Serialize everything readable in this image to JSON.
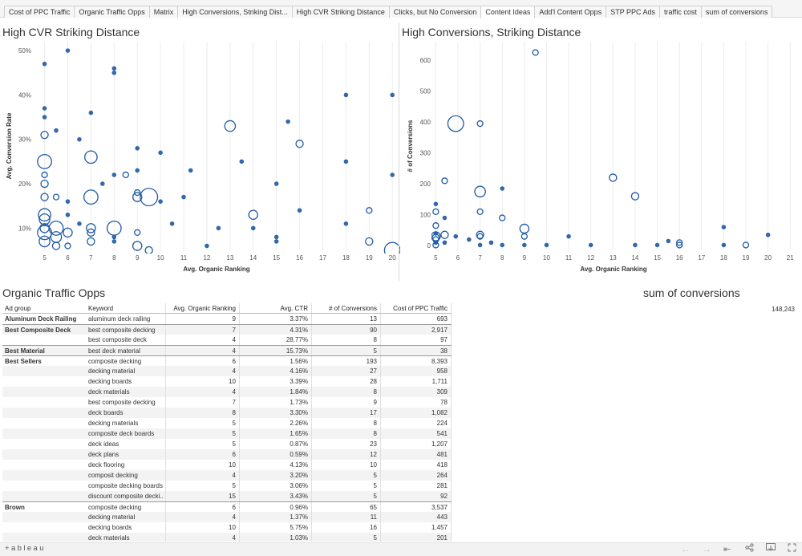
{
  "tabs": [
    {
      "label": "Cost of PPC Traffic"
    },
    {
      "label": "Organic Traffic Opps"
    },
    {
      "label": "Matrix"
    },
    {
      "label": "High Conversions, Striking Dist..."
    },
    {
      "label": "High CVR Striking Distance"
    },
    {
      "label": "Clicks, but No Conversion"
    },
    {
      "label": "Content Ideas",
      "active": true
    },
    {
      "label": "Add'l Content Opps"
    },
    {
      "label": "STP PPC Ads"
    },
    {
      "label": "traffic cost"
    },
    {
      "label": "sum of conversions"
    }
  ],
  "titles": {
    "cvr": "High CVR Striking Distance",
    "conv": "High Conversions, Striking Distance",
    "organic": "Organic Traffic Opps",
    "sum": "sum of conversions"
  },
  "sum_value": "148,243",
  "colors": {
    "mark": "#1f5aa6",
    "grid": "#ececec"
  },
  "chart_data": [
    {
      "type": "scatter",
      "title": "High CVR Striking Distance",
      "xlabel": "Avg. Organic Ranking",
      "ylabel": "Avg. Conversion Rate",
      "xticks": [
        "5",
        "6",
        "7",
        "8",
        "9",
        "10",
        "11",
        "12",
        "13",
        "14",
        "15",
        "16",
        "17",
        "18",
        "19",
        "20"
      ],
      "yticks": [
        "10%",
        "20%",
        "30%",
        "40%",
        "50%"
      ],
      "xlim": [
        4.6,
        20.2
      ],
      "ylim": [
        0.05,
        0.52
      ],
      "points": [
        [
          5,
          0.47,
          1
        ],
        [
          5,
          0.37,
          1
        ],
        [
          5,
          0.35,
          1
        ],
        [
          5,
          0.31,
          3
        ],
        [
          5,
          0.25,
          7
        ],
        [
          5,
          0.22,
          2
        ],
        [
          5,
          0.2,
          3
        ],
        [
          5,
          0.17,
          3
        ],
        [
          5,
          0.13,
          6
        ],
        [
          5,
          0.12,
          5
        ],
        [
          5,
          0.1,
          4
        ],
        [
          5,
          0.09,
          7
        ],
        [
          5,
          0.07,
          5
        ],
        [
          5.5,
          0.32,
          1
        ],
        [
          5.5,
          0.17,
          2
        ],
        [
          5.5,
          0.1,
          7
        ],
        [
          5.5,
          0.08,
          5
        ],
        [
          5.5,
          0.06,
          3
        ],
        [
          6,
          0.5,
          1
        ],
        [
          6,
          0.16,
          1
        ],
        [
          6,
          0.13,
          1
        ],
        [
          6,
          0.09,
          4
        ],
        [
          6,
          0.06,
          2
        ],
        [
          6.5,
          0.3,
          1
        ],
        [
          6.5,
          0.11,
          1
        ],
        [
          7,
          0.36,
          1
        ],
        [
          7,
          0.26,
          6
        ],
        [
          7,
          0.17,
          7
        ],
        [
          7,
          0.1,
          4
        ],
        [
          7,
          0.09,
          3
        ],
        [
          7,
          0.07,
          3
        ],
        [
          7.5,
          0.2,
          1
        ],
        [
          8,
          0.46,
          1
        ],
        [
          8,
          0.45,
          1
        ],
        [
          8,
          0.22,
          1
        ],
        [
          8,
          0.1,
          7
        ],
        [
          8,
          0.08,
          1
        ],
        [
          8,
          0.07,
          1
        ],
        [
          8.5,
          0.22,
          2
        ],
        [
          9,
          0.28,
          1
        ],
        [
          9,
          0.23,
          1
        ],
        [
          9,
          0.18,
          2
        ],
        [
          9,
          0.17,
          4
        ],
        [
          9,
          0.09,
          2
        ],
        [
          9,
          0.06,
          4
        ],
        [
          9.5,
          0.17,
          9
        ],
        [
          9.5,
          0.05,
          3
        ],
        [
          10,
          0.27,
          1
        ],
        [
          10,
          0.16,
          1
        ],
        [
          10.5,
          0.11,
          1
        ],
        [
          11,
          0.17,
          1
        ],
        [
          11.3,
          0.23,
          1
        ],
        [
          12,
          0.06,
          1
        ],
        [
          12.5,
          0.1,
          1
        ],
        [
          13,
          0.33,
          5
        ],
        [
          13.5,
          0.25,
          1
        ],
        [
          14,
          0.13,
          4
        ],
        [
          14,
          0.1,
          1
        ],
        [
          15,
          0.2,
          1
        ],
        [
          15,
          0.08,
          1
        ],
        [
          15,
          0.07,
          1
        ],
        [
          15.5,
          0.34,
          1
        ],
        [
          16,
          0.29,
          3
        ],
        [
          16,
          0.14,
          1
        ],
        [
          18,
          0.4,
          1
        ],
        [
          18,
          0.25,
          1
        ],
        [
          18,
          0.11,
          1
        ],
        [
          19,
          0.14,
          2
        ],
        [
          19,
          0.07,
          3
        ],
        [
          20,
          0.4,
          1
        ],
        [
          20,
          0.22,
          1
        ],
        [
          20,
          0.05,
          8
        ]
      ]
    },
    {
      "type": "scatter",
      "title": "High Conversions, Striking Distance",
      "xlabel": "Avg. Organic Ranking",
      "ylabel": "# of Conversions",
      "xticks": [
        "5",
        "6",
        "7",
        "8",
        "9",
        "10",
        "11",
        "12",
        "13",
        "14",
        "15",
        "16",
        "17",
        "18",
        "19",
        "20",
        "21"
      ],
      "yticks": [
        "0",
        "100",
        "200",
        "300",
        "400",
        "500",
        "600"
      ],
      "xlim": [
        4.95,
        21.1
      ],
      "ylim": [
        -15,
        660
      ],
      "points": [
        [
          5,
          135,
          1
        ],
        [
          5,
          110,
          2
        ],
        [
          5,
          65,
          2
        ],
        [
          5,
          40,
          1
        ],
        [
          5,
          30,
          4
        ],
        [
          5,
          25,
          3
        ],
        [
          5,
          20,
          2
        ],
        [
          5,
          10,
          1
        ],
        [
          5,
          2,
          2
        ],
        [
          5.4,
          210,
          2
        ],
        [
          5.4,
          90,
          1
        ],
        [
          5.4,
          35,
          3
        ],
        [
          5.4,
          10,
          1
        ],
        [
          5.9,
          395,
          8
        ],
        [
          5.9,
          30,
          1
        ],
        [
          6.5,
          20,
          1
        ],
        [
          7,
          395,
          2
        ],
        [
          7,
          175,
          5
        ],
        [
          7,
          110,
          2
        ],
        [
          7,
          35,
          3
        ],
        [
          7,
          30,
          2
        ],
        [
          7,
          2,
          1
        ],
        [
          7.5,
          10,
          1
        ],
        [
          8,
          185,
          1
        ],
        [
          8,
          90,
          2
        ],
        [
          8,
          2,
          1
        ],
        [
          9,
          55,
          4
        ],
        [
          9,
          30,
          2
        ],
        [
          9,
          2,
          1
        ],
        [
          9.5,
          625,
          2
        ],
        [
          10,
          2,
          1
        ],
        [
          11,
          30,
          1
        ],
        [
          12,
          2,
          1
        ],
        [
          13,
          220,
          3
        ],
        [
          14,
          160,
          3
        ],
        [
          14,
          2,
          1
        ],
        [
          15,
          2,
          1
        ],
        [
          15.5,
          15,
          1
        ],
        [
          16,
          10,
          2
        ],
        [
          16,
          2,
          2
        ],
        [
          18,
          60,
          1
        ],
        [
          18,
          2,
          1
        ],
        [
          19,
          2,
          2
        ],
        [
          20,
          35,
          1
        ]
      ]
    }
  ],
  "table": {
    "columns": [
      "Ad group",
      "Keyword",
      "Avg. Organic Ranking",
      "Avg. CTR",
      "# of Conversions",
      "Cost of PPC Traffic"
    ],
    "rows": [
      [
        "Aluminum Deck Railing",
        "aluminum deck railing",
        "9",
        "3.37%",
        "13",
        "693"
      ],
      [
        "Best Composite Deck",
        "best composite decking",
        "7",
        "4.31%",
        "90",
        "2,917"
      ],
      [
        "",
        "best composite deck",
        "4",
        "28.77%",
        "8",
        "97"
      ],
      [
        "Best Material",
        "best deck material",
        "4",
        "15.73%",
        "5",
        "38"
      ],
      [
        "Best Sellers",
        "composite decking",
        "6",
        "1.56%",
        "193",
        "8,393"
      ],
      [
        "",
        "decking material",
        "4",
        "4.16%",
        "27",
        "958"
      ],
      [
        "",
        "decking boards",
        "10",
        "3.39%",
        "28",
        "1,711"
      ],
      [
        "",
        "deck materials",
        "4",
        "1.84%",
        "8",
        "309"
      ],
      [
        "",
        "best composite decking",
        "7",
        "1.73%",
        "9",
        "78"
      ],
      [
        "",
        "deck boards",
        "8",
        "3.30%",
        "17",
        "1,082"
      ],
      [
        "",
        "decking materials",
        "5",
        "2.26%",
        "8",
        "224"
      ],
      [
        "",
        "composite deck boards",
        "5",
        "1.65%",
        "8",
        "541"
      ],
      [
        "",
        "deck ideas",
        "5",
        "0.87%",
        "23",
        "1,207"
      ],
      [
        "",
        "deck plans",
        "6",
        "0.59%",
        "12",
        "481"
      ],
      [
        "",
        "deck flooring",
        "10",
        "4.13%",
        "10",
        "418"
      ],
      [
        "",
        "composit decking",
        "4",
        "3.20%",
        "5",
        "264"
      ],
      [
        "",
        "composite decking boards",
        "5",
        "3.06%",
        "5",
        "281"
      ],
      [
        "",
        "discount composite decki..",
        "15",
        "3.43%",
        "5",
        "92"
      ],
      [
        "Brown",
        "composite decking",
        "6",
        "0.96%",
        "65",
        "3,537"
      ],
      [
        "",
        "decking material",
        "4",
        "1.37%",
        "11",
        "443"
      ],
      [
        "",
        "decking boards",
        "10",
        "5.75%",
        "16",
        "1,457"
      ],
      [
        "",
        "deck materials",
        "4",
        "1.03%",
        "5",
        "201"
      ]
    ]
  },
  "footer": {
    "logo": "+ableau",
    "icons": [
      "undo-icon",
      "redo-icon",
      "revert-icon",
      "share-icon",
      "download-icon",
      "fullscreen-icon"
    ]
  }
}
